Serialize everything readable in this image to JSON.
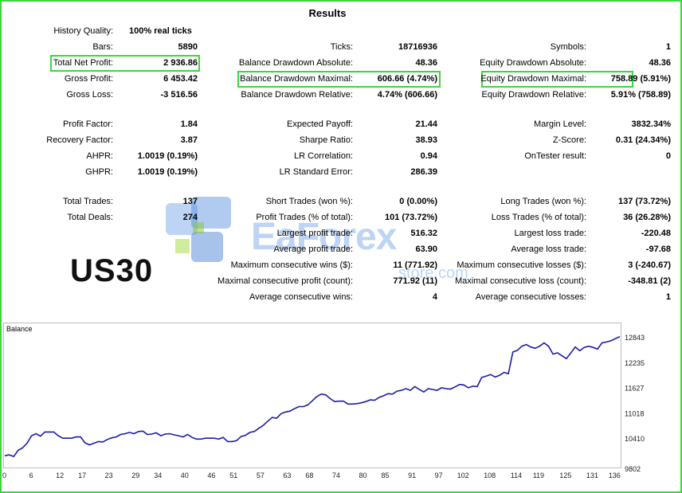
{
  "title": "Results",
  "symbol": "US30",
  "watermark": {
    "brand": "EaForex",
    "domain": "store.com"
  },
  "colors": {
    "highlight": "#3fd43f",
    "line": "#1c1ca8",
    "watermark": "#6ea0e6"
  },
  "row1": {
    "history_quality_label": "History Quality:",
    "history_quality_value": "100% real ticks"
  },
  "col1": [
    {
      "label": "Bars:",
      "value": "5890"
    },
    {
      "label": "Total Net Profit:",
      "value": "2 936.86"
    },
    {
      "label": "Gross Profit:",
      "value": "6 453.42"
    },
    {
      "label": "Gross Loss:",
      "value": "-3 516.56"
    },
    {
      "label": "Profit Factor:",
      "value": "1.84"
    },
    {
      "label": "Recovery Factor:",
      "value": "3.87"
    },
    {
      "label": "AHPR:",
      "value": "1.0019 (0.19%)"
    },
    {
      "label": "GHPR:",
      "value": "1.0019 (0.19%)"
    },
    {
      "label": "Total Trades:",
      "value": "137"
    },
    {
      "label": "Total Deals:",
      "value": "274"
    }
  ],
  "col2": [
    {
      "label": "Ticks:",
      "value": "18716936"
    },
    {
      "label": "Balance Drawdown Absolute:",
      "value": "48.36"
    },
    {
      "label": "Balance Drawdown Maximal:",
      "value": "606.66 (4.74%)"
    },
    {
      "label": "Balance Drawdown Relative:",
      "value": "4.74% (606.66)"
    },
    {
      "label": "Expected Payoff:",
      "value": "21.44"
    },
    {
      "label": "Sharpe Ratio:",
      "value": "38.93"
    },
    {
      "label": "LR Correlation:",
      "value": "0.94"
    },
    {
      "label": "LR Standard Error:",
      "value": "286.39"
    },
    {
      "label": "Short Trades (won %):",
      "value": "0 (0.00%)"
    },
    {
      "label": "Profit Trades (% of total):",
      "value": "101 (73.72%)"
    },
    {
      "label": "Largest profit trade:",
      "value": "516.32"
    },
    {
      "label": "Average profit trade:",
      "value": "63.90"
    },
    {
      "label": "Maximum consecutive wins ($):",
      "value": "11 (771.92)"
    },
    {
      "label": "Maximal consecutive profit (count):",
      "value": "771.92 (11)"
    },
    {
      "label": "Average consecutive wins:",
      "value": "4"
    }
  ],
  "col3": [
    {
      "label": "Symbols:",
      "value": "1"
    },
    {
      "label": "Equity Drawdown Absolute:",
      "value": "48.36"
    },
    {
      "label": "Equity Drawdown Maximal:",
      "value": "758.89 (5.91%)"
    },
    {
      "label": "Equity Drawdown Relative:",
      "value": "5.91% (758.89)"
    },
    {
      "label": "Margin Level:",
      "value": "3832.34%"
    },
    {
      "label": "Z-Score:",
      "value": "0.31 (24.34%)"
    },
    {
      "label": "OnTester result:",
      "value": "0"
    },
    {
      "label": "Long Trades (won %):",
      "value": "137 (73.72%)"
    },
    {
      "label": "Loss Trades (% of total):",
      "value": "36 (26.28%)"
    },
    {
      "label": "Largest loss trade:",
      "value": "-220.48"
    },
    {
      "label": "Average loss trade:",
      "value": "-97.68"
    },
    {
      "label": "Maximum consecutive losses ($):",
      "value": "3 (-240.67)"
    },
    {
      "label": "Maximal consecutive loss (count):",
      "value": "-348.81 (2)"
    },
    {
      "label": "Average consecutive losses:",
      "value": "1"
    }
  ],
  "chart_data": {
    "type": "line",
    "title": "Balance",
    "xlabel": "",
    "ylabel": "",
    "x_ticks": [
      "0",
      "6",
      "12",
      "17",
      "23",
      "29",
      "34",
      "40",
      "46",
      "51",
      "57",
      "63",
      "68",
      "74",
      "80",
      "85",
      "91",
      "97",
      "102",
      "108",
      "114",
      "119",
      "125",
      "131",
      "136"
    ],
    "y_ticks": [
      "12843",
      "12235",
      "11627",
      "11018",
      "10410",
      "9802"
    ],
    "ylim": [
      9802,
      12843
    ],
    "xlim": [
      0,
      138
    ],
    "series": [
      {
        "x": [
          0,
          1,
          2,
          3,
          4,
          5,
          6,
          7,
          8,
          9,
          10,
          11,
          12,
          13,
          14,
          15,
          16,
          17,
          18,
          19,
          20,
          21,
          22,
          23,
          24,
          25,
          26,
          27,
          28,
          29,
          30,
          31,
          32,
          33,
          34,
          35,
          36,
          37,
          38,
          39,
          40,
          41,
          42,
          43,
          44,
          45,
          46,
          47,
          48,
          49,
          50,
          51,
          52,
          53,
          54,
          55,
          56,
          57,
          58,
          59,
          60,
          61,
          62,
          63,
          64,
          65,
          66,
          67,
          68,
          69,
          70,
          71,
          72,
          73,
          74,
          75,
          76,
          77,
          78,
          79,
          80,
          81,
          82,
          83,
          84,
          85,
          86,
          87,
          88,
          89,
          90,
          91,
          92,
          93,
          94,
          95,
          96,
          97,
          98,
          99,
          100,
          101,
          102,
          103,
          104,
          105,
          106,
          107,
          108,
          109,
          110,
          111,
          112,
          113,
          114,
          115,
          116,
          117,
          118,
          119,
          120,
          121,
          122,
          123,
          124,
          125,
          126,
          127,
          128,
          129,
          130,
          131,
          132,
          133,
          134,
          135,
          136,
          137,
          138
        ],
        "y": [
          9990,
          10010,
          9970,
          10120,
          10180,
          10290,
          10470,
          10520,
          10460,
          10560,
          10560,
          10560,
          10470,
          10410,
          10410,
          10410,
          10440,
          10440,
          10300,
          10250,
          10290,
          10330,
          10320,
          10380,
          10420,
          10440,
          10500,
          10520,
          10550,
          10520,
          10570,
          10580,
          10500,
          10510,
          10540,
          10470,
          10510,
          10520,
          10490,
          10470,
          10440,
          10500,
          10430,
          10390,
          10390,
          10410,
          10410,
          10410,
          10390,
          10430,
          10330,
          10330,
          10350,
          10450,
          10480,
          10550,
          10570,
          10650,
          10720,
          10820,
          10910,
          10890,
          11000,
          11040,
          11060,
          11120,
          11170,
          11170,
          11210,
          11310,
          11410,
          11470,
          11450,
          11360,
          11290,
          11300,
          11300,
          11230,
          11230,
          11240,
          11260,
          11290,
          11330,
          11320,
          11390,
          11430,
          11480,
          11470,
          11540,
          11560,
          11600,
          11560,
          11650,
          11580,
          11520,
          11600,
          11580,
          11560,
          11620,
          11600,
          11590,
          11640,
          11700,
          11690,
          11620,
          11660,
          11650,
          11870,
          11900,
          11940,
          11880,
          11920,
          11990,
          11960,
          12480,
          12520,
          12620,
          12660,
          12600,
          12570,
          12620,
          12700,
          12620,
          12430,
          12460,
          12390,
          12320,
          12460,
          12600,
          12510,
          12590,
          12620,
          12590,
          12550,
          12700,
          12720,
          12750,
          12800,
          12850
        ]
      }
    ]
  }
}
